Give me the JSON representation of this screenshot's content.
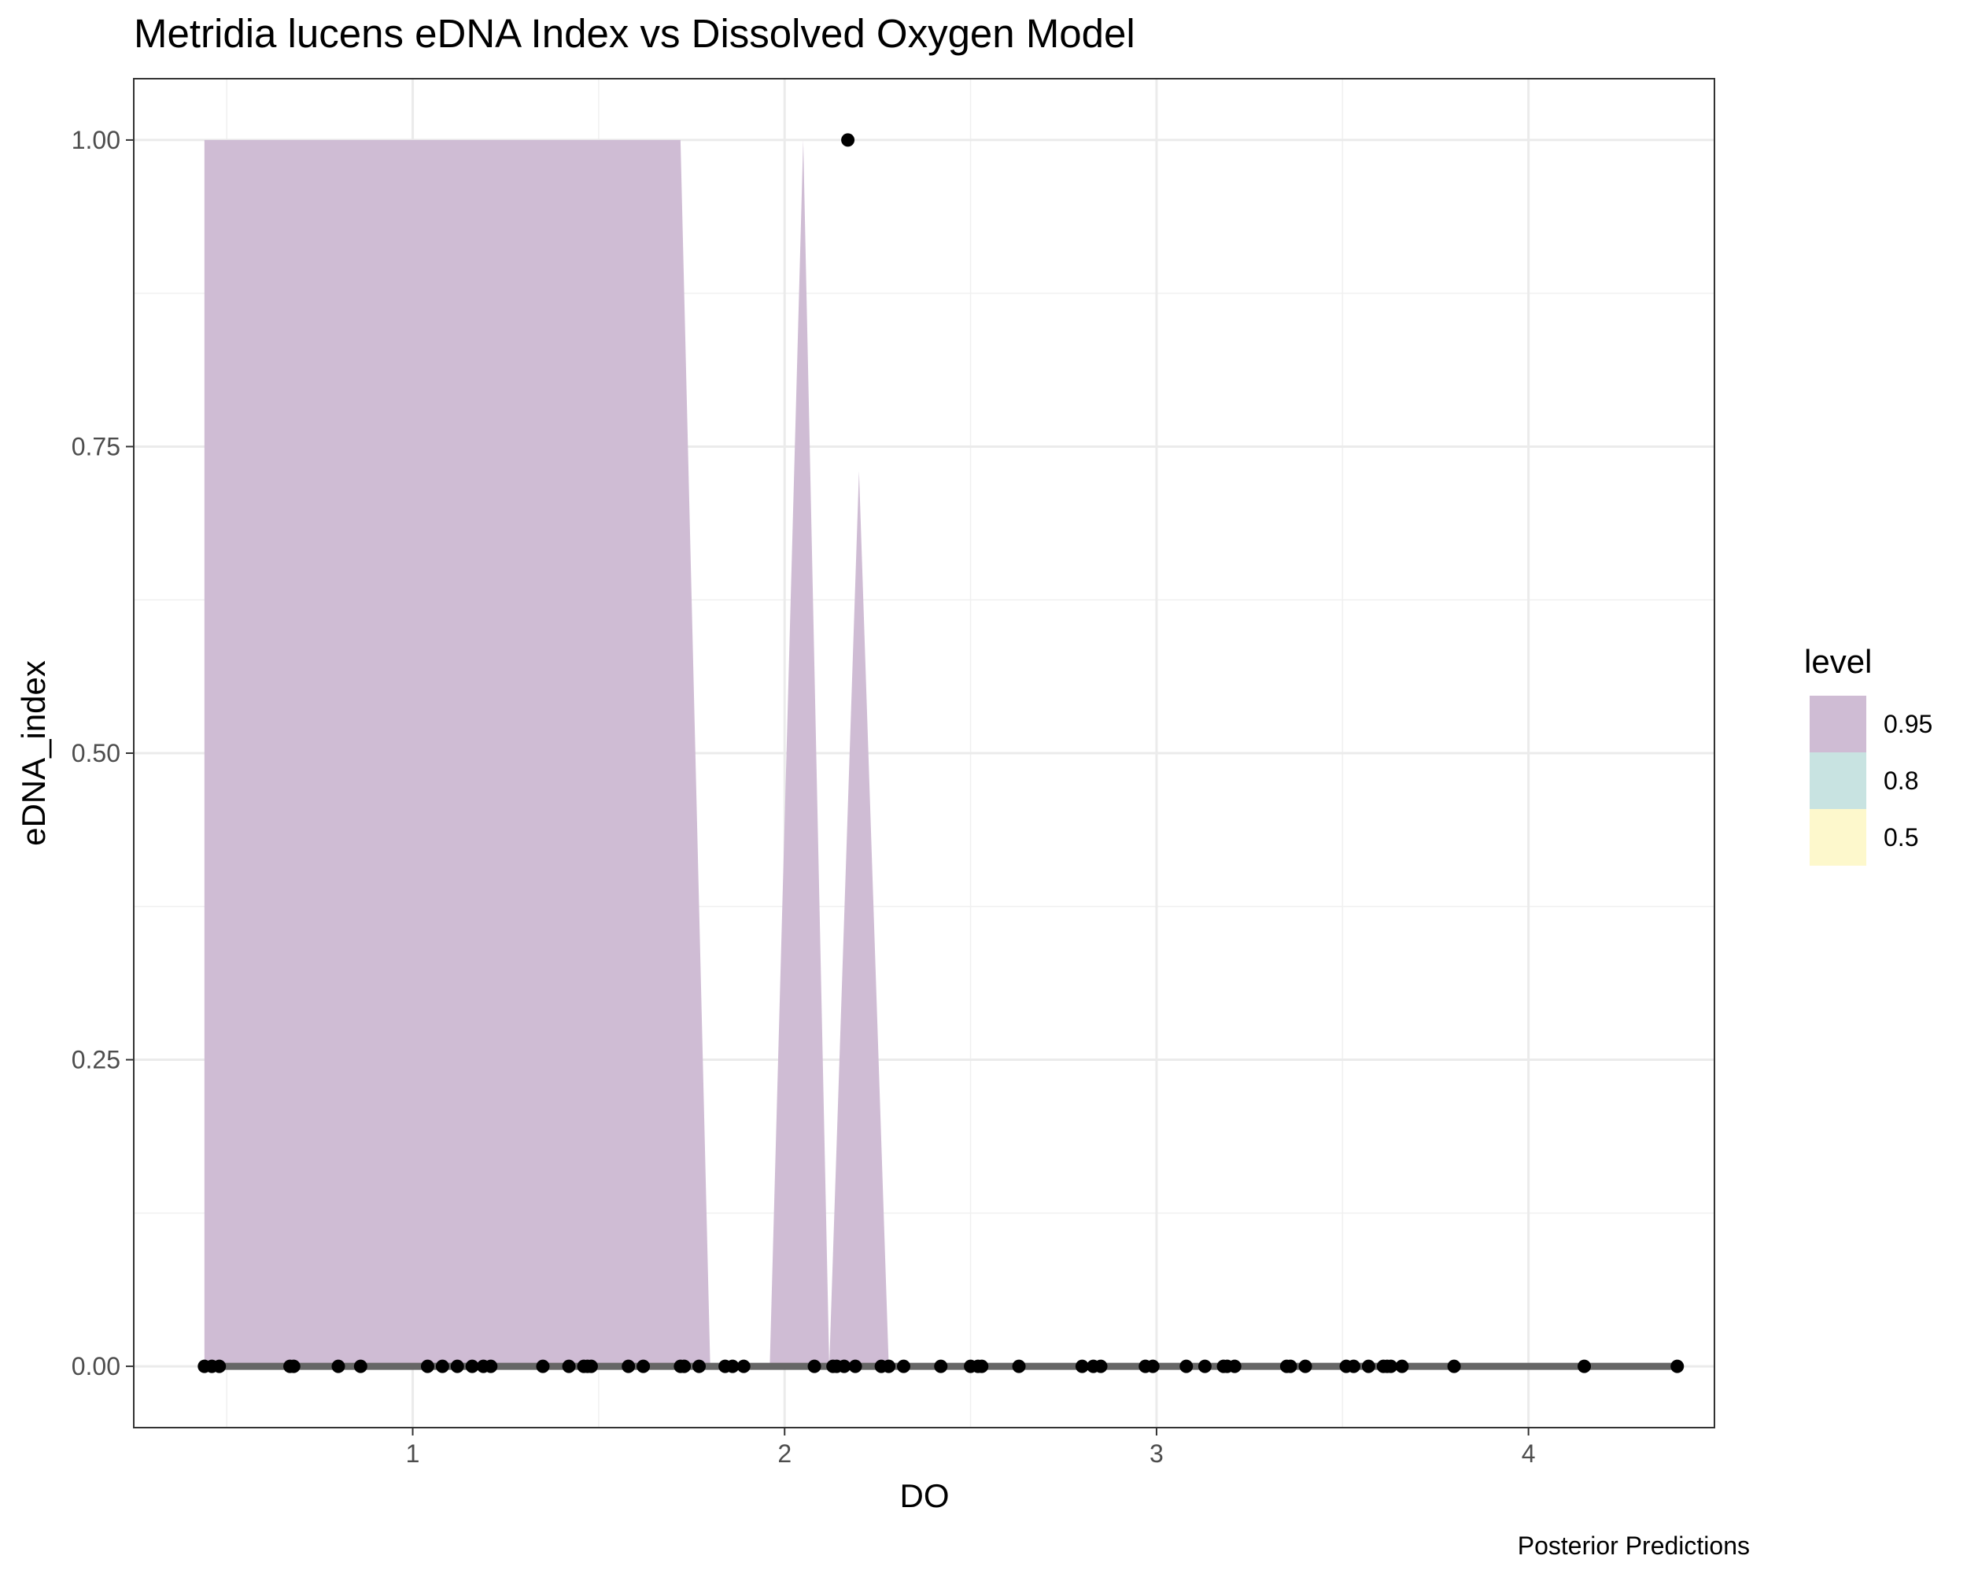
{
  "chart_data": {
    "type": "area",
    "title": "Metridia lucens eDNA Index vs Dissolved Oxygen Model",
    "caption": "Posterior Predictions",
    "xlabel": "DO",
    "ylabel": "eDNA_index",
    "xlim": [
      0.25,
      4.5
    ],
    "ylim": [
      -0.05,
      1.05
    ],
    "x_ticks": [
      1,
      2,
      3,
      4
    ],
    "x_tick_labels": [
      "1",
      "2",
      "3",
      "4"
    ],
    "y_ticks": [
      0,
      0.25,
      0.5,
      0.75,
      1.0
    ],
    "y_tick_labels": [
      "0.00",
      "0.25",
      "0.50",
      "0.75",
      "1.00"
    ],
    "grid": true,
    "legend": {
      "title": "level",
      "position": "right",
      "entries": [
        {
          "label": "0.95",
          "color": "#cfbcd4"
        },
        {
          "label": "0.8",
          "color": "#c8e3e1"
        },
        {
          "label": "0.5",
          "color": "#fdf8cc"
        }
      ]
    },
    "ribbon_95": {
      "color": "#cfbcd4",
      "segments": [
        {
          "x": [
            0.44,
            1.72,
            1.8
          ],
          "upper": [
            1.0,
            1.0,
            0.0
          ]
        },
        {
          "x": [
            1.96,
            2.05,
            2.12
          ],
          "upper": [
            0.0,
            1.0,
            0.0
          ]
        },
        {
          "x": [
            2.12,
            2.2,
            2.28
          ],
          "upper": [
            0.0,
            0.73,
            0.0
          ]
        }
      ]
    },
    "median_line": {
      "x": [
        0.44,
        4.4
      ],
      "y": [
        0.0,
        0.0
      ],
      "color": "#666666"
    },
    "points": {
      "color": "#000000",
      "x": [
        0.44,
        0.46,
        0.48,
        0.67,
        0.68,
        0.8,
        0.86,
        1.04,
        1.08,
        1.12,
        1.16,
        1.19,
        1.21,
        1.35,
        1.42,
        1.46,
        1.47,
        1.48,
        1.58,
        1.62,
        1.72,
        1.73,
        1.77,
        1.84,
        1.86,
        1.89,
        2.08,
        2.13,
        2.14,
        2.16,
        2.17,
        2.19,
        2.26,
        2.28,
        2.32,
        2.42,
        2.5,
        2.52,
        2.53,
        2.63,
        2.8,
        2.83,
        2.85,
        2.97,
        2.99,
        3.08,
        3.13,
        3.18,
        3.19,
        3.21,
        3.35,
        3.36,
        3.4,
        3.51,
        3.53,
        3.57,
        3.61,
        3.62,
        3.63,
        3.66,
        3.8,
        4.15,
        4.4
      ],
      "y": [
        0,
        0,
        0,
        0,
        0,
        0,
        0,
        0,
        0,
        0,
        0,
        0,
        0,
        0,
        0,
        0,
        0,
        0,
        0,
        0,
        0,
        0,
        0,
        0,
        0,
        0,
        0,
        0,
        0,
        0,
        1.0,
        0,
        0,
        0,
        0,
        0,
        0,
        0,
        0,
        0,
        0,
        0,
        0,
        0,
        0,
        0,
        0,
        0,
        0,
        0,
        0,
        0,
        0,
        0,
        0,
        0,
        0,
        0,
        0,
        0,
        0,
        0,
        0
      ]
    }
  }
}
